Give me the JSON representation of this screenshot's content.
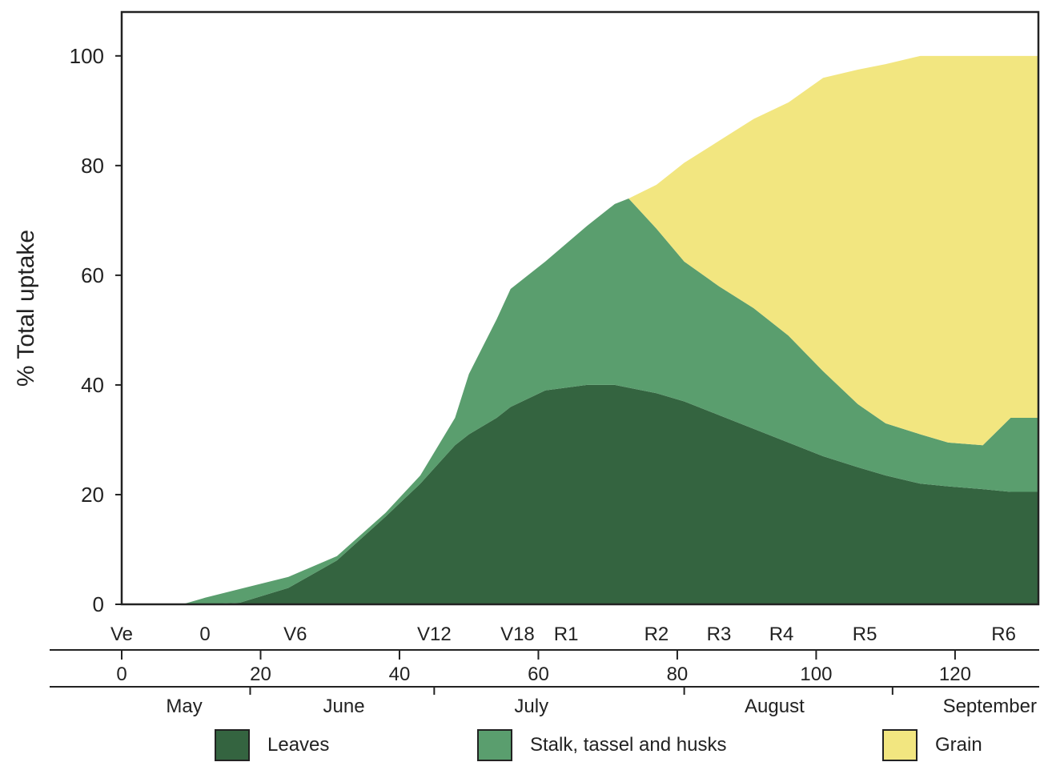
{
  "chart_data": {
    "type": "area",
    "stacked": true,
    "ylabel": "% Total uptake",
    "xlabel": "",
    "xlim": [
      0,
      132
    ],
    "ylim": [
      0,
      108
    ],
    "yticks": [
      0,
      20,
      40,
      60,
      80,
      100
    ],
    "x_axis_days": {
      "ticks": [
        0,
        20,
        40,
        60,
        80,
        100,
        120
      ]
    },
    "growth_stages": [
      {
        "label": "Ve",
        "x": 0
      },
      {
        "label": "0",
        "x": 12
      },
      {
        "label": "V6",
        "x": 25
      },
      {
        "label": "V12",
        "x": 45
      },
      {
        "label": "V18",
        "x": 57
      },
      {
        "label": "R1",
        "x": 64
      },
      {
        "label": "R2",
        "x": 77
      },
      {
        "label": "R3",
        "x": 86
      },
      {
        "label": "R4",
        "x": 95
      },
      {
        "label": "R5",
        "x": 107
      },
      {
        "label": "R6",
        "x": 127
      }
    ],
    "months": [
      {
        "label": "May",
        "center": 9
      },
      {
        "label": "June",
        "center": 32
      },
      {
        "label": "July",
        "center": 59
      },
      {
        "label": "August",
        "center": 94
      },
      {
        "label": "September",
        "center": 125
      }
    ],
    "month_boundaries": [
      18.5,
      45,
      81,
      111
    ],
    "x": [
      0,
      9,
      12,
      17,
      24,
      31,
      38,
      43,
      48,
      50,
      54,
      56,
      61,
      67,
      71,
      73,
      77,
      81,
      86,
      91,
      96,
      101,
      106,
      110,
      115,
      119,
      124,
      128,
      132
    ],
    "series": [
      {
        "name": "Leaves",
        "color": "#346440",
        "values": [
          0,
          0,
          0,
          0.3,
          3,
          8,
          16,
          22,
          29,
          31,
          34,
          36,
          39,
          40,
          40,
          39.5,
          38.5,
          37,
          34.5,
          32,
          29.5,
          27,
          25,
          23.5,
          22,
          21.5,
          21,
          20.5,
          20.5
        ]
      },
      {
        "name": "Stalk, tassel and husks",
        "color": "#5a9e6e",
        "values": [
          0,
          0.1,
          1.2,
          2.5,
          2,
          0.8,
          0.7,
          1.5,
          5,
          11,
          18,
          21.5,
          23.5,
          29,
          33,
          34.5,
          30,
          25.5,
          23.5,
          22,
          19.5,
          15.5,
          11.5,
          9.5,
          9,
          8,
          8,
          13.5,
          13.5
        ]
      },
      {
        "name": "Grain",
        "color": "#f2e680",
        "values": [
          0,
          0,
          0,
          0,
          0,
          0,
          0,
          0,
          0,
          0,
          0,
          0,
          0,
          0,
          0,
          0,
          8,
          18,
          26.5,
          34.5,
          42.5,
          53.5,
          61,
          65.5,
          69,
          70.5,
          71,
          66,
          66
        ]
      }
    ]
  },
  "legend": [
    {
      "label": "Leaves",
      "color": "#346440"
    },
    {
      "label": "Stalk, tassel and husks",
      "color": "#5a9e6e"
    },
    {
      "label": "Grain",
      "color": "#f2e680"
    }
  ]
}
